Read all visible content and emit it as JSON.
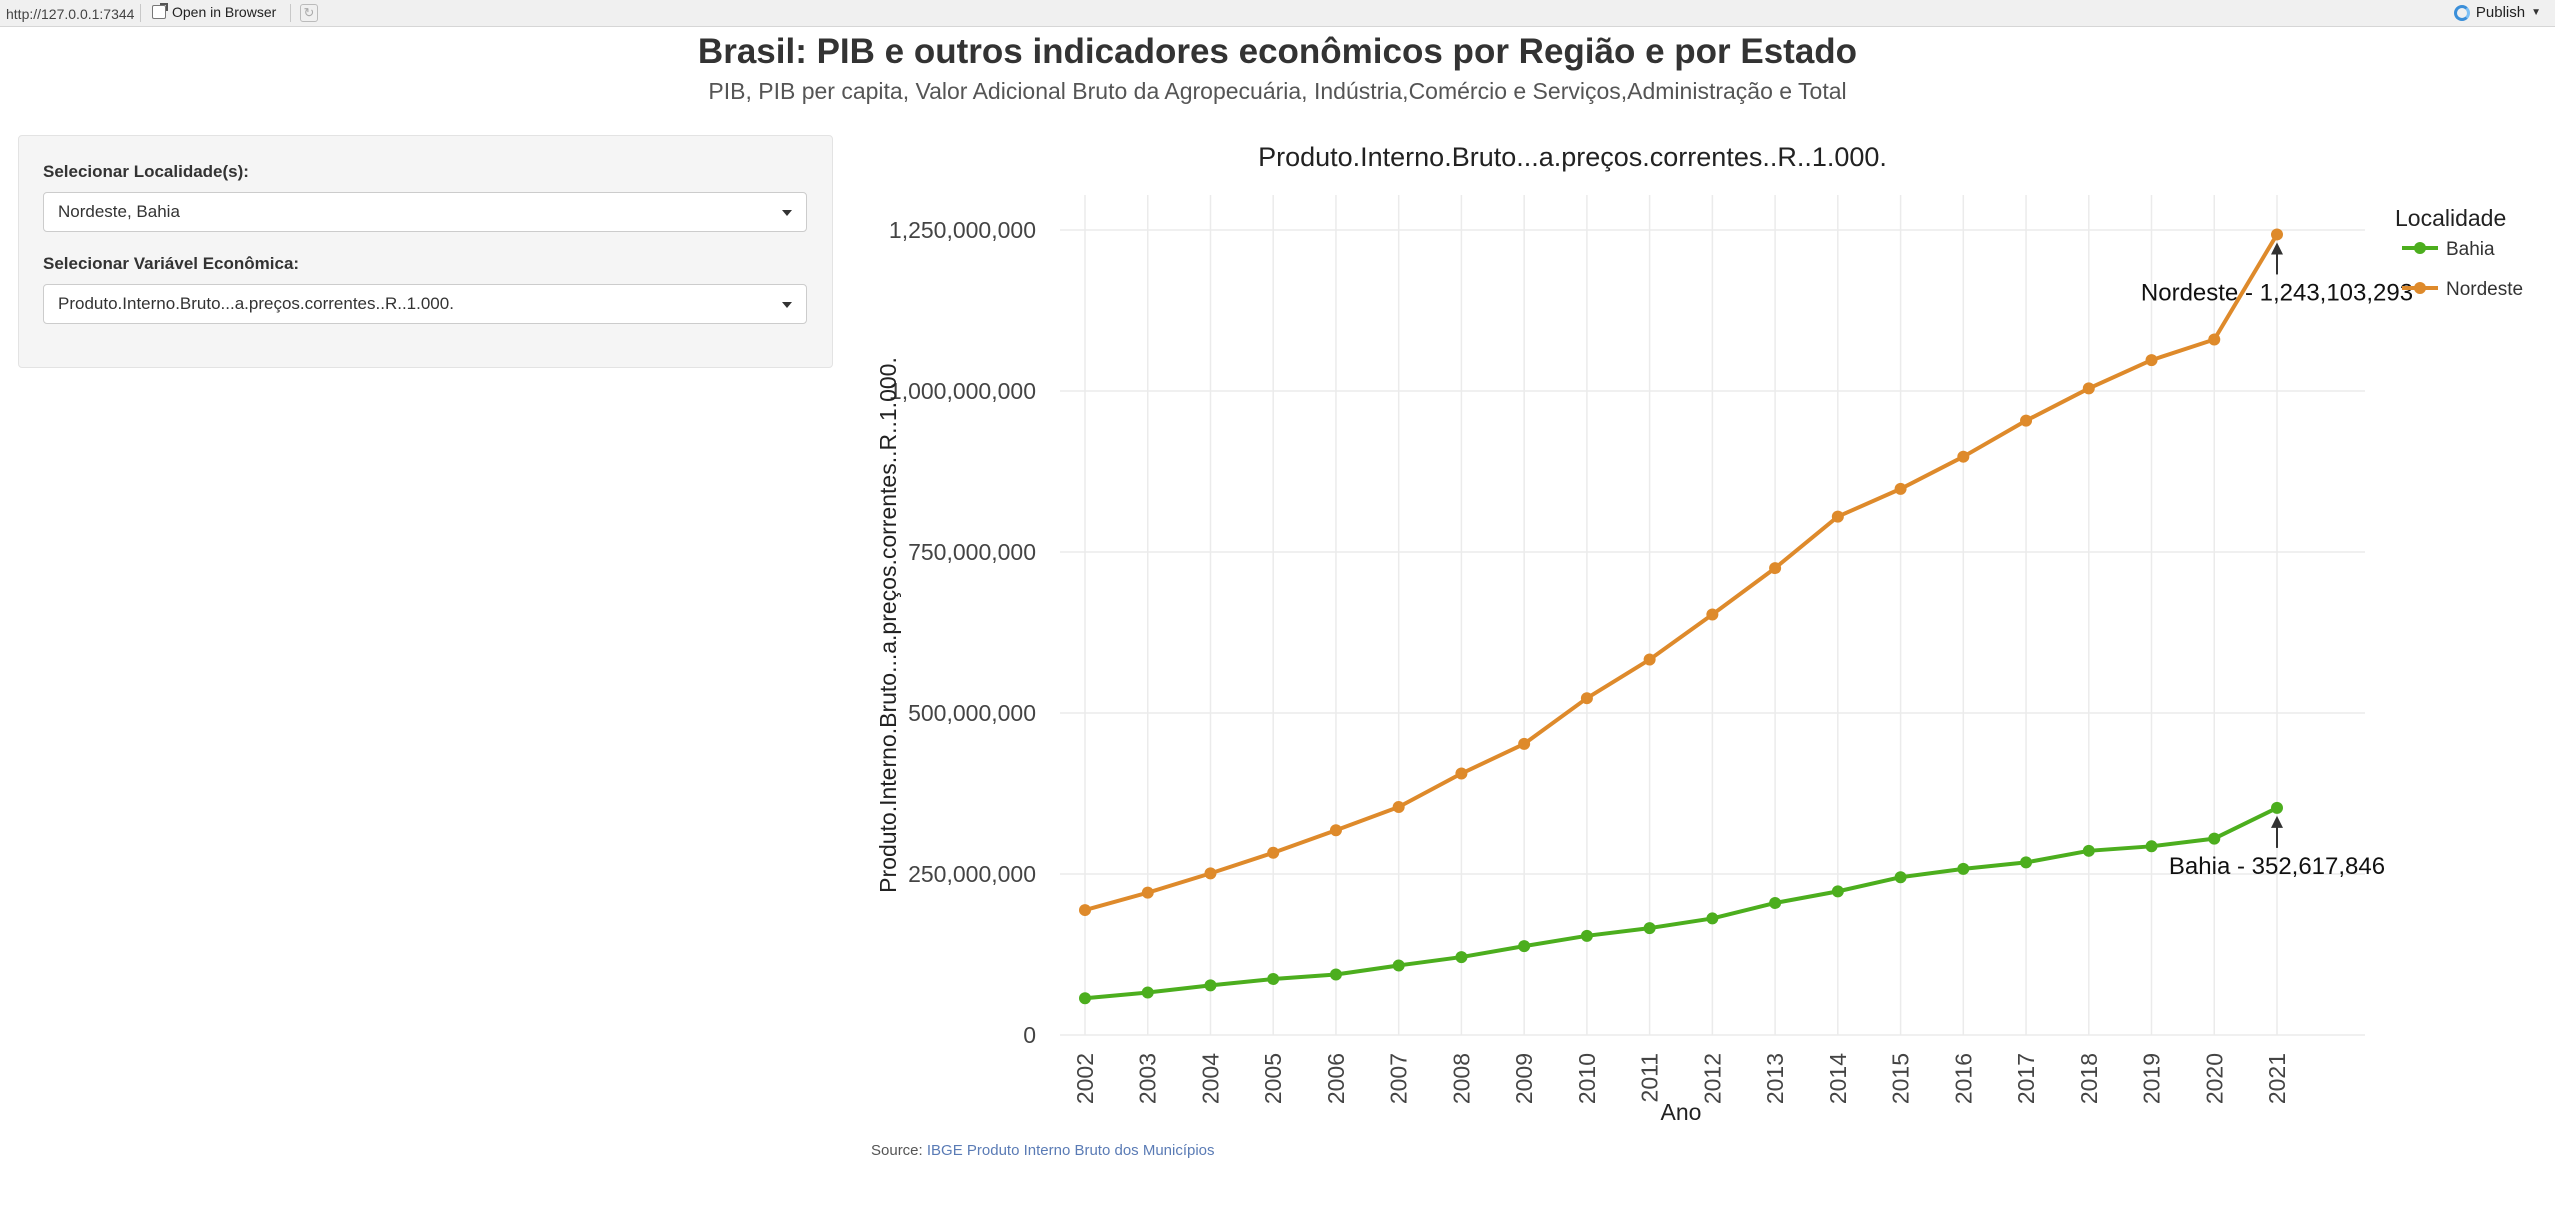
{
  "browser": {
    "url": "http://127.0.0.1:7344",
    "open_in_browser": "Open in Browser",
    "publish": "Publish"
  },
  "header": {
    "title": "Brasil: PIB e outros indicadores econômicos por Região e por Estado",
    "subtitle": "PIB, PIB per capita, Valor Adicional Bruto da Agropecuária, Indústria,Comércio e Serviços,Administração e Total"
  },
  "sidebar": {
    "localidade_label": "Selecionar Localidade(s):",
    "localidade_value": "Nordeste, Bahia",
    "variavel_label": "Selecionar Variável Econômica:",
    "variavel_value": "Produto.Interno.Bruto...a.preços.correntes..R..1.000."
  },
  "footer": {
    "source_prefix": "Source:",
    "source_link": "IBGE Produto Interno Bruto dos Municípios"
  },
  "chart_data": {
    "type": "line",
    "title": "Produto.Interno.Bruto...a.preços.correntes..R..1.000.",
    "xlabel": "Ano",
    "ylabel": "Produto.Interno.Bruto...a.preços.correntes..R..1.000.",
    "x": [
      2002,
      2003,
      2004,
      2005,
      2006,
      2007,
      2008,
      2009,
      2010,
      2011,
      2012,
      2013,
      2014,
      2015,
      2016,
      2017,
      2018,
      2019,
      2020,
      2021
    ],
    "ylim": [
      0,
      1250000000
    ],
    "yticks": [
      0,
      250000000,
      500000000,
      750000000,
      1000000000,
      1250000000
    ],
    "ytick_labels": [
      "0",
      "250,000,000",
      "500,000,000",
      "750,000,000",
      "1,000,000,000",
      "1,250,000,000"
    ],
    "grid": true,
    "legend": {
      "title": "Localidade",
      "position": "top-right"
    },
    "series": [
      {
        "name": "Bahia",
        "color": "#4cae1e",
        "values": [
          57000000,
          66000000,
          77000000,
          87000000,
          94000000,
          108000000,
          121000000,
          138000000,
          154000000,
          166000000,
          181000000,
          205000000,
          223000000,
          245000000,
          258000000,
          268000000,
          286000000,
          293000000,
          305000000,
          352617846
        ]
      },
      {
        "name": "Nordeste",
        "color": "#de8a2b",
        "values": [
          194000000,
          221000000,
          251000000,
          283000000,
          318000000,
          354000000,
          406000000,
          452000000,
          523000000,
          583000000,
          653000000,
          725000000,
          805000000,
          848000000,
          898000000,
          954000000,
          1004000000,
          1048000000,
          1080000000,
          1243103293
        ]
      }
    ],
    "annotations": [
      {
        "series": "Nordeste",
        "x": 2021,
        "text": "Nordeste - 1,243,103,293"
      },
      {
        "series": "Bahia",
        "x": 2021,
        "text": "Bahia - 352,617,846"
      }
    ]
  }
}
